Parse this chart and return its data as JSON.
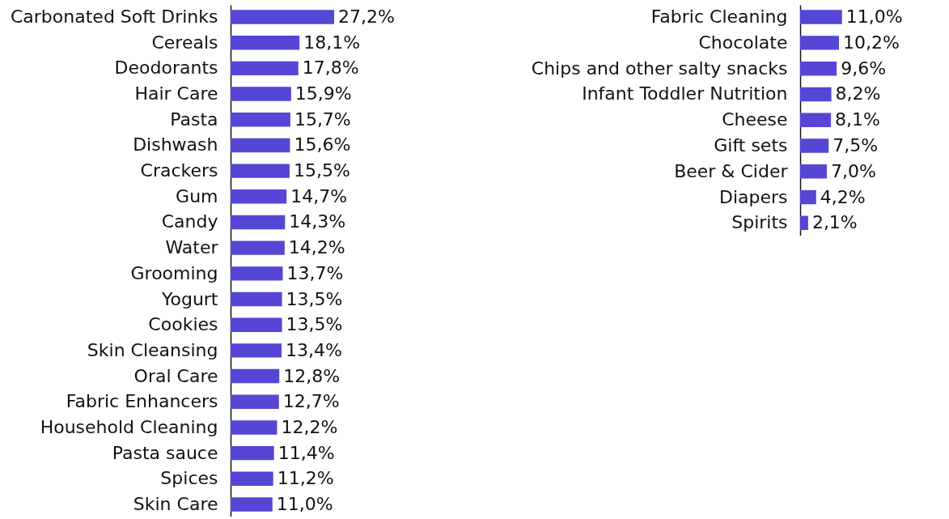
{
  "chart_data": [
    {
      "type": "bar",
      "orientation": "horizontal",
      "color": "#5546d6",
      "categories": [
        "Carbonated Soft Drinks",
        "Cereals",
        "Deodorants",
        "Hair Care",
        "Pasta",
        "Dishwash",
        "Crackers",
        "Gum",
        "Candy",
        "Water",
        "Grooming",
        "Yogurt",
        "Cookies",
        "Skin Cleansing",
        "Oral Care",
        "Fabric Enhancers",
        "Household Cleaning",
        "Pasta sauce",
        "Spices",
        "Skin Care"
      ],
      "values": [
        27.2,
        18.1,
        17.8,
        15.9,
        15.7,
        15.6,
        15.5,
        14.7,
        14.3,
        14.2,
        13.7,
        13.5,
        13.5,
        13.4,
        12.8,
        12.7,
        12.2,
        11.4,
        11.2,
        11.0
      ],
      "value_labels": [
        "27,2%",
        "18,1%",
        "17,8%",
        "15,9%",
        "15,7%",
        "15,6%",
        "15,5%",
        "14,7%",
        "14,3%",
        "14,2%",
        "13,7%",
        "13,5%",
        "13,5%",
        "13,4%",
        "12,8%",
        "12,7%",
        "12,2%",
        "11,4%",
        "11,2%",
        "11,0%"
      ]
    },
    {
      "type": "bar",
      "orientation": "horizontal",
      "color": "#5546d6",
      "categories": [
        "Fabric Cleaning",
        "Chocolate",
        "Chips and other salty snacks",
        "Infant Toddler Nutrition",
        "Cheese",
        "Gift sets",
        "Beer & Cider",
        "Diapers",
        "Spirits"
      ],
      "values": [
        11.0,
        10.2,
        9.6,
        8.2,
        8.1,
        7.5,
        7.0,
        4.2,
        2.1
      ],
      "value_labels": [
        "11,0%",
        "10,2%",
        "9,6%",
        "8,2%",
        "8,1%",
        "7,5%",
        "7,0%",
        "4,2%",
        "2,1%"
      ]
    }
  ]
}
